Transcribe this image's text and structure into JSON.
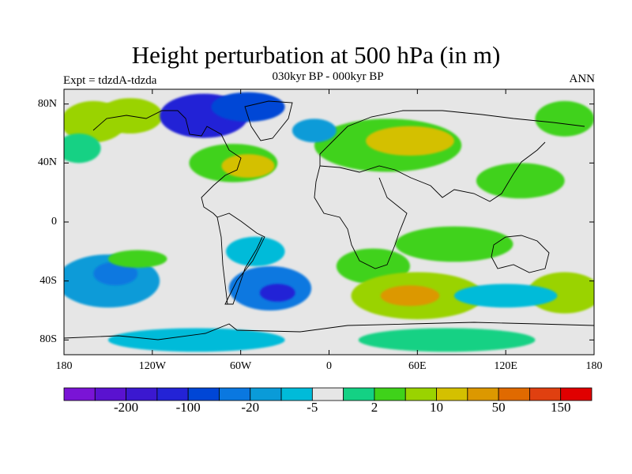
{
  "header": {
    "title": "Height perturbation at 500 hPa (in m)",
    "subtitle": "030kyr BP - 000kyr BP",
    "left_label": "Expt = tdzdA-tdzda",
    "right_label": "ANN"
  },
  "map": {
    "projection": "cylindrical-equidistant",
    "lon_range": [
      -180,
      180
    ],
    "lat_range": [
      -90,
      90
    ],
    "background_color": "#e6e6e6",
    "coastline_color": "#000000",
    "lat_ticks": [
      {
        "value": 80,
        "label": "80N"
      },
      {
        "value": 40,
        "label": "40N"
      },
      {
        "value": 0,
        "label": "0"
      },
      {
        "value": -40,
        "label": "40S"
      },
      {
        "value": -80,
        "label": "80S"
      }
    ],
    "lon_ticks": [
      {
        "value": -180,
        "label": "180"
      },
      {
        "value": -120,
        "label": "120W"
      },
      {
        "value": -60,
        "label": "60W"
      },
      {
        "value": 0,
        "label": "0"
      },
      {
        "value": 60,
        "label": "60E"
      },
      {
        "value": 120,
        "label": "120E"
      },
      {
        "value": 180,
        "label": "180"
      }
    ],
    "anomaly_regions": [
      {
        "lon": -160,
        "lat": 68,
        "rx": 22,
        "ry": 14,
        "level": 11
      },
      {
        "lon": -135,
        "lat": 72,
        "rx": 22,
        "ry": 12,
        "level": 11
      },
      {
        "lon": -170,
        "lat": 50,
        "rx": 15,
        "ry": 10,
        "level": 9
      },
      {
        "lon": -85,
        "lat": 72,
        "rx": 30,
        "ry": 15,
        "level": 3
      },
      {
        "lon": -55,
        "lat": 78,
        "rx": 25,
        "ry": 10,
        "level": 4
      },
      {
        "lon": -65,
        "lat": 40,
        "rx": 30,
        "ry": 13,
        "level": 10
      },
      {
        "lon": -55,
        "lat": 38,
        "rx": 18,
        "ry": 8,
        "level": 12
      },
      {
        "lon": 40,
        "lat": 52,
        "rx": 50,
        "ry": 18,
        "level": 10
      },
      {
        "lon": 55,
        "lat": 55,
        "rx": 30,
        "ry": 10,
        "level": 12
      },
      {
        "lon": 130,
        "lat": 28,
        "rx": 30,
        "ry": 12,
        "level": 10
      },
      {
        "lon": 160,
        "lat": 70,
        "rx": 20,
        "ry": 12,
        "level": 10
      },
      {
        "lon": -10,
        "lat": 62,
        "rx": 15,
        "ry": 8,
        "level": 6
      },
      {
        "lon": -150,
        "lat": -40,
        "rx": 35,
        "ry": 18,
        "level": 6
      },
      {
        "lon": -145,
        "lat": -35,
        "rx": 15,
        "ry": 8,
        "level": 5
      },
      {
        "lon": -130,
        "lat": -25,
        "rx": 20,
        "ry": 6,
        "level": 10
      },
      {
        "lon": -40,
        "lat": -45,
        "rx": 28,
        "ry": 15,
        "level": 5
      },
      {
        "lon": -35,
        "lat": -48,
        "rx": 12,
        "ry": 6,
        "level": 3
      },
      {
        "lon": -50,
        "lat": -20,
        "rx": 20,
        "ry": 10,
        "level": 7
      },
      {
        "lon": 30,
        "lat": -30,
        "rx": 25,
        "ry": 12,
        "level": 10
      },
      {
        "lon": 60,
        "lat": -50,
        "rx": 45,
        "ry": 16,
        "level": 11
      },
      {
        "lon": 55,
        "lat": -50,
        "rx": 20,
        "ry": 7,
        "level": 13
      },
      {
        "lon": 85,
        "lat": -15,
        "rx": 40,
        "ry": 12,
        "level": 10
      },
      {
        "lon": 160,
        "lat": -48,
        "rx": 25,
        "ry": 14,
        "level": 11
      },
      {
        "lon": 120,
        "lat": -50,
        "rx": 35,
        "ry": 8,
        "level": 7
      },
      {
        "lon": -90,
        "lat": -80,
        "rx": 60,
        "ry": 8,
        "level": 7
      },
      {
        "lon": 80,
        "lat": -80,
        "rx": 60,
        "ry": 8,
        "level": 9
      }
    ]
  },
  "colorbar": {
    "colors": [
      "#7a14d6",
      "#5a12d0",
      "#3b18d0",
      "#2323d6",
      "#0046d6",
      "#0a78e0",
      "#0a9bd8",
      "#00bbd9",
      "#e6e6e6",
      "#14d184",
      "#3fd21a",
      "#9ad300",
      "#d4c000",
      "#dc9800",
      "#e06a00",
      "#e04010",
      "#e00000"
    ],
    "ticks": [
      {
        "index": 2,
        "label": "-200"
      },
      {
        "index": 4,
        "label": "-100"
      },
      {
        "index": 6,
        "label": "-20"
      },
      {
        "index": 8,
        "label": "-5"
      },
      {
        "index": 10,
        "label": "2"
      },
      {
        "index": 12,
        "label": "10"
      },
      {
        "index": 14,
        "label": "50"
      },
      {
        "index": 16,
        "label": "150"
      }
    ]
  }
}
